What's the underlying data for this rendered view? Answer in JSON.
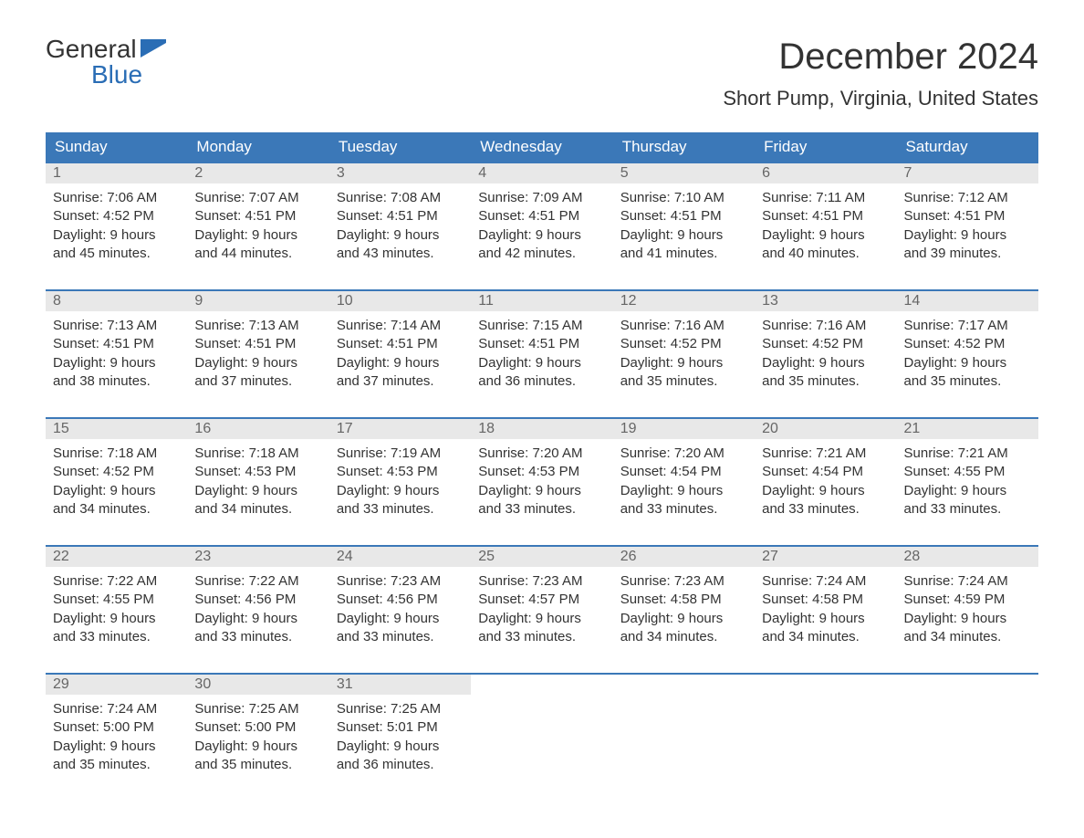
{
  "logo": {
    "line1": "General",
    "line2": "Blue",
    "flag_color": "#2a6db5"
  },
  "title": "December 2024",
  "location": "Short Pump, Virginia, United States",
  "colors": {
    "header_bg": "#3b78b8",
    "header_text": "#ffffff",
    "daynum_bg": "#e8e8e8",
    "daynum_text": "#666666",
    "rule": "#3b78b8",
    "body_text": "#333333",
    "background": "#ffffff"
  },
  "typography": {
    "title_fontsize": 40,
    "location_fontsize": 22,
    "header_fontsize": 17,
    "body_fontsize": 15,
    "daynum_fontsize": 16,
    "logo_fontsize": 28
  },
  "weekdays": [
    "Sunday",
    "Monday",
    "Tuesday",
    "Wednesday",
    "Thursday",
    "Friday",
    "Saturday"
  ],
  "weeks": [
    [
      {
        "n": "1",
        "sunrise": "Sunrise: 7:06 AM",
        "sunset": "Sunset: 4:52 PM",
        "d1": "Daylight: 9 hours",
        "d2": "and 45 minutes."
      },
      {
        "n": "2",
        "sunrise": "Sunrise: 7:07 AM",
        "sunset": "Sunset: 4:51 PM",
        "d1": "Daylight: 9 hours",
        "d2": "and 44 minutes."
      },
      {
        "n": "3",
        "sunrise": "Sunrise: 7:08 AM",
        "sunset": "Sunset: 4:51 PM",
        "d1": "Daylight: 9 hours",
        "d2": "and 43 minutes."
      },
      {
        "n": "4",
        "sunrise": "Sunrise: 7:09 AM",
        "sunset": "Sunset: 4:51 PM",
        "d1": "Daylight: 9 hours",
        "d2": "and 42 minutes."
      },
      {
        "n": "5",
        "sunrise": "Sunrise: 7:10 AM",
        "sunset": "Sunset: 4:51 PM",
        "d1": "Daylight: 9 hours",
        "d2": "and 41 minutes."
      },
      {
        "n": "6",
        "sunrise": "Sunrise: 7:11 AM",
        "sunset": "Sunset: 4:51 PM",
        "d1": "Daylight: 9 hours",
        "d2": "and 40 minutes."
      },
      {
        "n": "7",
        "sunrise": "Sunrise: 7:12 AM",
        "sunset": "Sunset: 4:51 PM",
        "d1": "Daylight: 9 hours",
        "d2": "and 39 minutes."
      }
    ],
    [
      {
        "n": "8",
        "sunrise": "Sunrise: 7:13 AM",
        "sunset": "Sunset: 4:51 PM",
        "d1": "Daylight: 9 hours",
        "d2": "and 38 minutes."
      },
      {
        "n": "9",
        "sunrise": "Sunrise: 7:13 AM",
        "sunset": "Sunset: 4:51 PM",
        "d1": "Daylight: 9 hours",
        "d2": "and 37 minutes."
      },
      {
        "n": "10",
        "sunrise": "Sunrise: 7:14 AM",
        "sunset": "Sunset: 4:51 PM",
        "d1": "Daylight: 9 hours",
        "d2": "and 37 minutes."
      },
      {
        "n": "11",
        "sunrise": "Sunrise: 7:15 AM",
        "sunset": "Sunset: 4:51 PM",
        "d1": "Daylight: 9 hours",
        "d2": "and 36 minutes."
      },
      {
        "n": "12",
        "sunrise": "Sunrise: 7:16 AM",
        "sunset": "Sunset: 4:52 PM",
        "d1": "Daylight: 9 hours",
        "d2": "and 35 minutes."
      },
      {
        "n": "13",
        "sunrise": "Sunrise: 7:16 AM",
        "sunset": "Sunset: 4:52 PM",
        "d1": "Daylight: 9 hours",
        "d2": "and 35 minutes."
      },
      {
        "n": "14",
        "sunrise": "Sunrise: 7:17 AM",
        "sunset": "Sunset: 4:52 PM",
        "d1": "Daylight: 9 hours",
        "d2": "and 35 minutes."
      }
    ],
    [
      {
        "n": "15",
        "sunrise": "Sunrise: 7:18 AM",
        "sunset": "Sunset: 4:52 PM",
        "d1": "Daylight: 9 hours",
        "d2": "and 34 minutes."
      },
      {
        "n": "16",
        "sunrise": "Sunrise: 7:18 AM",
        "sunset": "Sunset: 4:53 PM",
        "d1": "Daylight: 9 hours",
        "d2": "and 34 minutes."
      },
      {
        "n": "17",
        "sunrise": "Sunrise: 7:19 AM",
        "sunset": "Sunset: 4:53 PM",
        "d1": "Daylight: 9 hours",
        "d2": "and 33 minutes."
      },
      {
        "n": "18",
        "sunrise": "Sunrise: 7:20 AM",
        "sunset": "Sunset: 4:53 PM",
        "d1": "Daylight: 9 hours",
        "d2": "and 33 minutes."
      },
      {
        "n": "19",
        "sunrise": "Sunrise: 7:20 AM",
        "sunset": "Sunset: 4:54 PM",
        "d1": "Daylight: 9 hours",
        "d2": "and 33 minutes."
      },
      {
        "n": "20",
        "sunrise": "Sunrise: 7:21 AM",
        "sunset": "Sunset: 4:54 PM",
        "d1": "Daylight: 9 hours",
        "d2": "and 33 minutes."
      },
      {
        "n": "21",
        "sunrise": "Sunrise: 7:21 AM",
        "sunset": "Sunset: 4:55 PM",
        "d1": "Daylight: 9 hours",
        "d2": "and 33 minutes."
      }
    ],
    [
      {
        "n": "22",
        "sunrise": "Sunrise: 7:22 AM",
        "sunset": "Sunset: 4:55 PM",
        "d1": "Daylight: 9 hours",
        "d2": "and 33 minutes."
      },
      {
        "n": "23",
        "sunrise": "Sunrise: 7:22 AM",
        "sunset": "Sunset: 4:56 PM",
        "d1": "Daylight: 9 hours",
        "d2": "and 33 minutes."
      },
      {
        "n": "24",
        "sunrise": "Sunrise: 7:23 AM",
        "sunset": "Sunset: 4:56 PM",
        "d1": "Daylight: 9 hours",
        "d2": "and 33 minutes."
      },
      {
        "n": "25",
        "sunrise": "Sunrise: 7:23 AM",
        "sunset": "Sunset: 4:57 PM",
        "d1": "Daylight: 9 hours",
        "d2": "and 33 minutes."
      },
      {
        "n": "26",
        "sunrise": "Sunrise: 7:23 AM",
        "sunset": "Sunset: 4:58 PM",
        "d1": "Daylight: 9 hours",
        "d2": "and 34 minutes."
      },
      {
        "n": "27",
        "sunrise": "Sunrise: 7:24 AM",
        "sunset": "Sunset: 4:58 PM",
        "d1": "Daylight: 9 hours",
        "d2": "and 34 minutes."
      },
      {
        "n": "28",
        "sunrise": "Sunrise: 7:24 AM",
        "sunset": "Sunset: 4:59 PM",
        "d1": "Daylight: 9 hours",
        "d2": "and 34 minutes."
      }
    ],
    [
      {
        "n": "29",
        "sunrise": "Sunrise: 7:24 AM",
        "sunset": "Sunset: 5:00 PM",
        "d1": "Daylight: 9 hours",
        "d2": "and 35 minutes."
      },
      {
        "n": "30",
        "sunrise": "Sunrise: 7:25 AM",
        "sunset": "Sunset: 5:00 PM",
        "d1": "Daylight: 9 hours",
        "d2": "and 35 minutes."
      },
      {
        "n": "31",
        "sunrise": "Sunrise: 7:25 AM",
        "sunset": "Sunset: 5:01 PM",
        "d1": "Daylight: 9 hours",
        "d2": "and 36 minutes."
      },
      {
        "empty": true
      },
      {
        "empty": true
      },
      {
        "empty": true
      },
      {
        "empty": true
      }
    ]
  ]
}
